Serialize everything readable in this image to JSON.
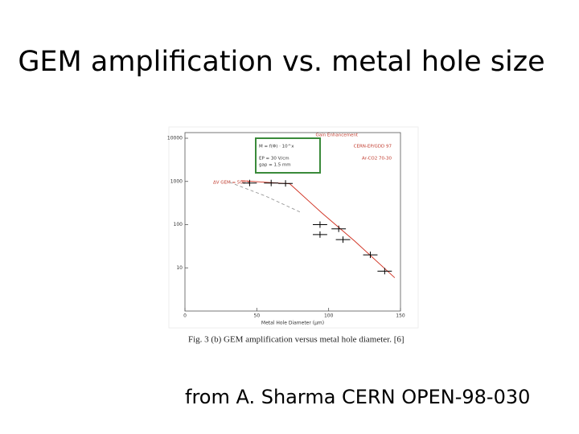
{
  "title": "GEM amplification vs. metal hole size",
  "source": "from A. Sharma CERN OPEN-98-030",
  "chart_data": {
    "type": "scatter",
    "log_y": true,
    "xlabel": "Metal Hole Diameter (μm)",
    "caption": "Fig. 3 (b) GEM amplification versus metal hole diameter. [6]",
    "annotations": [
      "Gain Enhancement",
      "M = f(Φ) · 10^x",
      "EP = 30 V/cm",
      "gap = 1.5 mm",
      "CERN-EP/GDD 97",
      "Ar-CO2 70-30",
      "ΔV GEM = 500 V"
    ],
    "xlim": [
      0,
      150
    ],
    "xticks": [
      0,
      50,
      100,
      150
    ],
    "ylim": [
      1,
      13500
    ],
    "yticks": [
      10000,
      1000,
      100,
      10
    ],
    "series": [
      {
        "color": "#000000",
        "x": [
          45,
          60,
          70,
          94,
          94,
          107,
          110,
          129,
          139
        ],
        "values": [
          920,
          920,
          900,
          100,
          59,
          80,
          45,
          20,
          8.4
        ],
        "xerr": [
          5,
          5,
          5,
          5,
          5,
          5,
          5,
          5,
          5
        ]
      }
    ],
    "curves": [
      {
        "color": "#d03020",
        "dashed": false,
        "x": [
          39,
          73,
          95,
          118,
          146
        ],
        "values": [
          1040,
          880,
          190,
          42,
          5.9
        ]
      },
      {
        "color": "#999999",
        "dashed": true,
        "x": [
          31,
          56,
          81
        ],
        "values": [
          960,
          460,
          190
        ]
      }
    ]
  }
}
